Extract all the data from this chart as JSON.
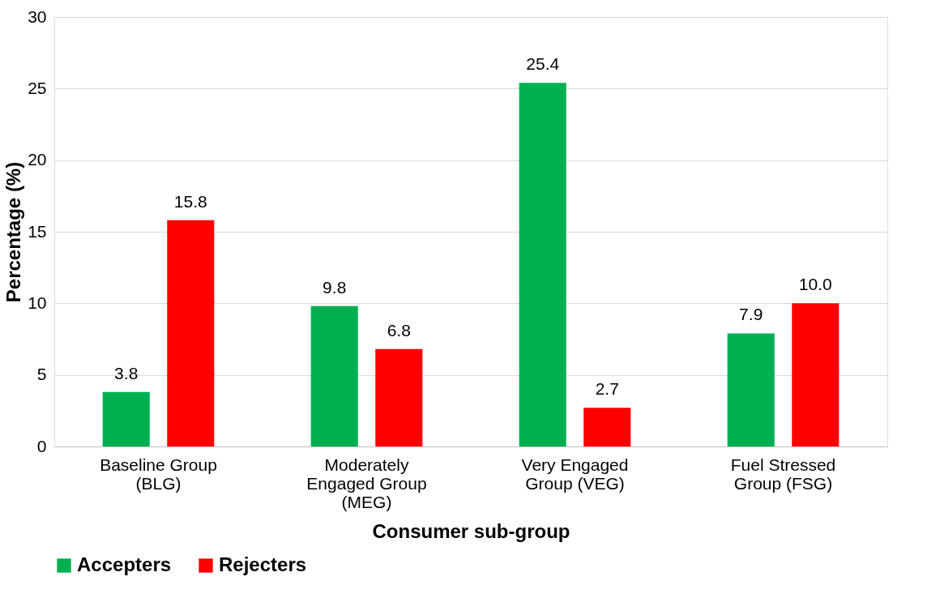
{
  "chart_data": {
    "type": "bar",
    "xlabel": "Consumer sub-group",
    "ylabel": "Percentage (%)",
    "categories": [
      "Baseline Group (BLG)",
      "Moderately Engaged Group (MEG)",
      "Very Engaged Group (VEG)",
      "Fuel Stressed Group (FSG)"
    ],
    "series": [
      {
        "name": "Accepters",
        "color": "#00b050",
        "values": [
          3.8,
          9.8,
          25.4,
          7.9
        ]
      },
      {
        "name": "Rejecters",
        "color": "#ff0000",
        "values": [
          15.8,
          6.8,
          2.7,
          10.0
        ]
      }
    ],
    "value_labels": [
      [
        "3.8",
        "9.8",
        "25.4",
        "7.9"
      ],
      [
        "15.8",
        "6.8",
        "2.7",
        "10.0"
      ]
    ],
    "ylim": [
      0,
      30
    ],
    "yticks": [
      0,
      5,
      10,
      15,
      20,
      25,
      30
    ],
    "grid": "y",
    "legend": "bottom"
  }
}
